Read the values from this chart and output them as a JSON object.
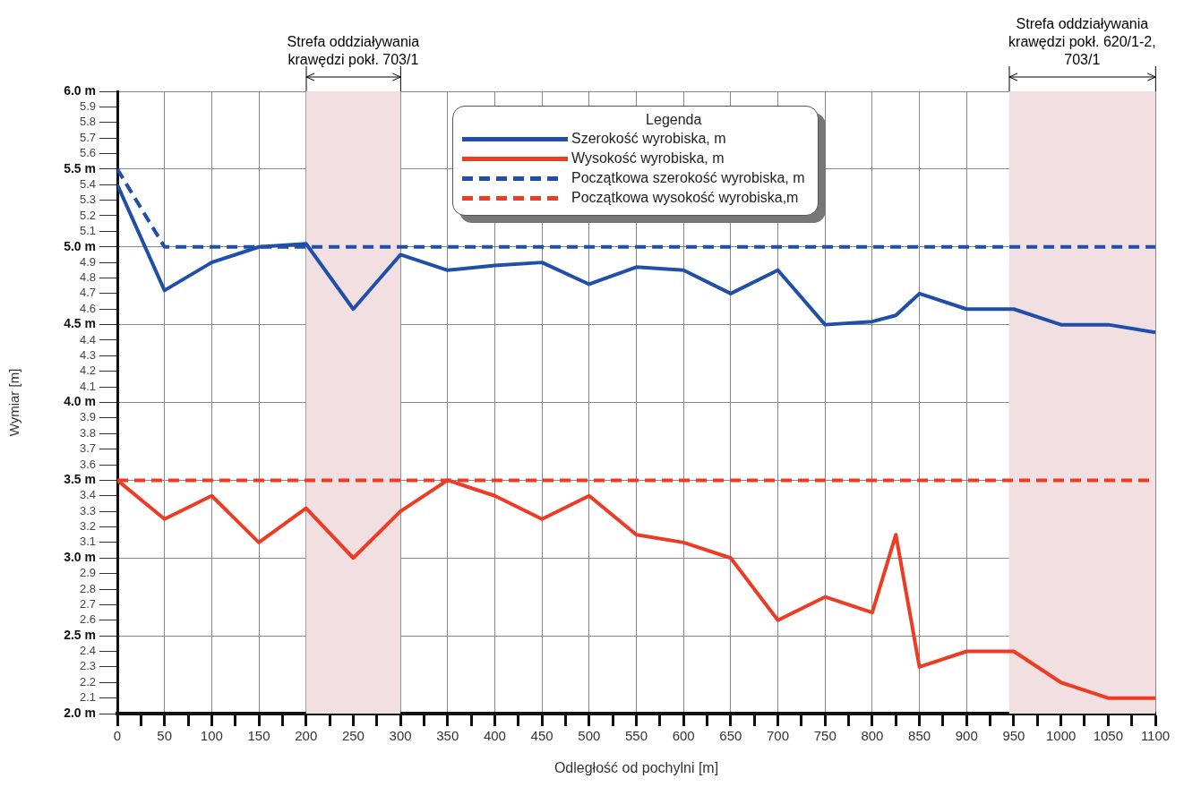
{
  "chart_data": {
    "type": "line",
    "xlabel": "Odległość od pochylni [m]",
    "ylabel": "Wymiar [m]",
    "legend": "top",
    "legend_title": "Legenda",
    "grid": true,
    "marker": "none",
    "xlim": [
      0,
      1100
    ],
    "ylim": [
      2.0,
      6.0
    ],
    "xticks": [
      0,
      {
        "value": 25,
        "label": null
      },
      50,
      {
        "value": 75,
        "label": null
      },
      100,
      {
        "value": 125,
        "label": null
      },
      150,
      {
        "value": 175,
        "label": null
      },
      200,
      {
        "value": 225,
        "label": null
      },
      250,
      {
        "value": 275,
        "label": null
      },
      300,
      {
        "value": 325,
        "label": null
      },
      350,
      {
        "value": 375,
        "label": null
      },
      400,
      {
        "value": 425,
        "label": null
      },
      450,
      {
        "value": 475,
        "label": null
      },
      500,
      {
        "value": 525,
        "label": null
      },
      550,
      {
        "value": 575,
        "label": null
      },
      600,
      {
        "value": 625,
        "label": null
      },
      650,
      {
        "value": 675,
        "label": null
      },
      700,
      {
        "value": 725,
        "label": null
      },
      750,
      {
        "value": 775,
        "label": null
      },
      800,
      {
        "value": 825,
        "label": null
      },
      850,
      {
        "value": 875,
        "label": null
      },
      900,
      {
        "value": 925,
        "label": null
      },
      950,
      {
        "value": 975,
        "label": null
      },
      1000,
      {
        "value": 1025,
        "label": null
      },
      1050,
      {
        "value": 1075,
        "label": null
      },
      1100
    ],
    "yticks": [
      {
        "value": 2.0,
        "label": "2.0 m"
      },
      2.1,
      2.2,
      2.3,
      2.4,
      {
        "value": 2.5,
        "label": "2.5 m"
      },
      2.6,
      2.7,
      2.8,
      2.9,
      {
        "value": 3.0,
        "label": "3.0 m"
      },
      3.1,
      3.2,
      3.3,
      3.4,
      {
        "value": 3.5,
        "label": "3.5 m"
      },
      3.6,
      3.7,
      3.8,
      3.9,
      {
        "value": 4.0,
        "label": "4.0 m"
      },
      4.1,
      4.2,
      4.3,
      4.4,
      {
        "value": 4.5,
        "label": "4.5 m"
      },
      4.6,
      4.7,
      4.8,
      4.9,
      {
        "value": 5.0,
        "label": "5.0 m"
      },
      5.1,
      5.2,
      5.3,
      5.4,
      {
        "value": 5.5,
        "label": "5.5 m"
      },
      5.6,
      5.7,
      5.8,
      5.9,
      {
        "value": 6.0,
        "label": "6.0 m"
      }
    ],
    "bands": [
      {
        "axis": "x",
        "from": 200,
        "to": 300,
        "label": "Strefa oddziaływania krawędzi pokł. 703/1",
        "color": "#f2dfe2"
      },
      {
        "axis": "x",
        "from": 945,
        "to": 1100,
        "label": "Strefa oddziaływania krawędzi pokł. 620/1-2, 703/1",
        "color": "#f2dfe2"
      }
    ],
    "series": [
      {
        "name": "Szerokość wyrobiska, m",
        "color": "#1f4fa8",
        "line_style": "solid",
        "x": [
          0,
          50,
          100,
          150,
          200,
          250,
          300,
          350,
          400,
          450,
          500,
          550,
          600,
          650,
          700,
          750,
          800,
          825,
          850,
          900,
          950,
          1000,
          1050,
          1100
        ],
        "values": [
          5.4,
          4.72,
          4.9,
          5.0,
          5.02,
          4.6,
          4.95,
          4.85,
          4.88,
          4.9,
          4.76,
          4.87,
          4.85,
          4.7,
          4.85,
          4.5,
          4.52,
          4.56,
          4.7,
          4.6,
          4.6,
          4.5,
          4.5,
          4.45
        ]
      },
      {
        "name": "Wysokość wyrobiska, m",
        "color": "#ee3b24",
        "line_style": "solid",
        "x": [
          0,
          50,
          100,
          150,
          200,
          250,
          300,
          350,
          400,
          450,
          500,
          550,
          600,
          650,
          700,
          750,
          800,
          825,
          850,
          900,
          950,
          1000,
          1050,
          1100
        ],
        "values": [
          3.5,
          3.25,
          3.4,
          3.1,
          3.32,
          3.0,
          3.3,
          3.5,
          3.4,
          3.25,
          3.4,
          3.15,
          3.1,
          3.0,
          2.6,
          2.75,
          2.65,
          3.15,
          2.3,
          2.4,
          2.4,
          2.2,
          2.1,
          2.1
        ]
      },
      {
        "name": "Początkowa szerokość wyrobiska, m",
        "color": "#1f4fa8",
        "line_style": "dashed",
        "x": [
          0,
          50,
          1100
        ],
        "values": [
          5.5,
          5.0,
          5.0
        ]
      },
      {
        "name": "Początkowa wysokość wyrobiska,m",
        "color": "#ee3b24",
        "line_style": "dashed",
        "x": [
          0,
          1100
        ],
        "values": [
          3.5,
          3.5
        ]
      }
    ]
  }
}
